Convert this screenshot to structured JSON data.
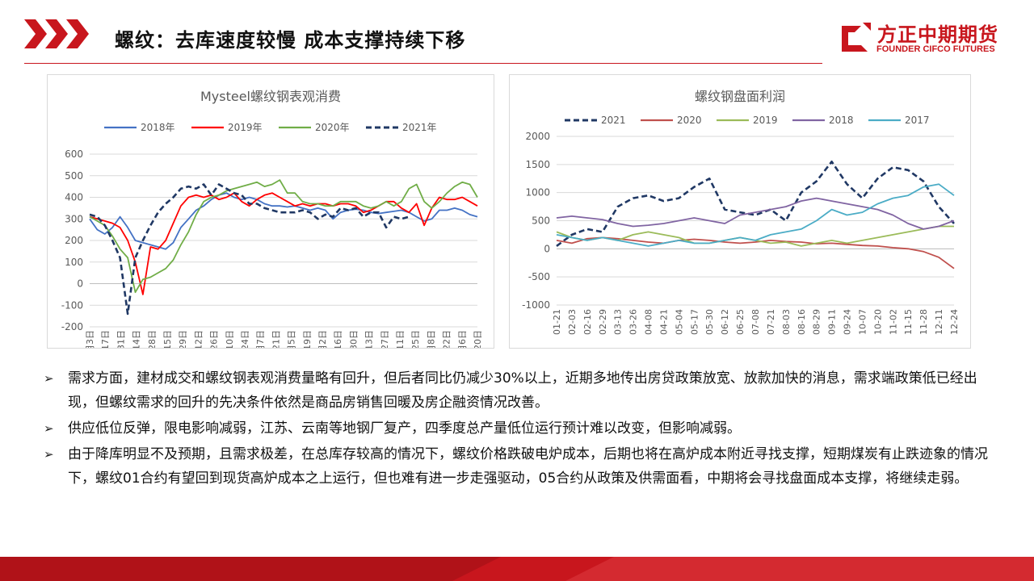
{
  "header": {
    "title": "螺纹：去库速度较慢 成本支撑持续下移",
    "logo_cn": "方正中期期货",
    "logo_en": "FOUNDER CIFCO FUTURES"
  },
  "colors": {
    "brand_red": "#c8161d"
  },
  "chart_data": [
    {
      "type": "line",
      "title": "Mysteel螺纹钢表观消费",
      "ylim": [
        -200,
        600
      ],
      "yticks": [
        -200,
        -100,
        0,
        100,
        200,
        300,
        400,
        500,
        600
      ],
      "xticks": [
        "1月3日",
        "1月17日",
        "1月31日",
        "2月14日",
        "2月28日",
        "3月15日",
        "3月29日",
        "4月12日",
        "4月26日",
        "5月10日",
        "5月24日",
        "6月7日",
        "6月21日",
        "7月5日",
        "7月19日",
        "8月2日",
        "8月16日",
        "8月30日",
        "9月13日",
        "9月27日",
        "10月11日",
        "10月25日",
        "11月8日",
        "11月22日",
        "12月6日",
        "12月20日"
      ],
      "x_count": 52,
      "legend_position": "top",
      "series": [
        {
          "name": "2018年",
          "color": "#4472c4",
          "style": "solid",
          "values": [
            300,
            250,
            230,
            260,
            310,
            260,
            200,
            190,
            180,
            170,
            160,
            190,
            260,
            300,
            340,
            360,
            390,
            410,
            420,
            400,
            390,
            400,
            390,
            370,
            360,
            360,
            355,
            360,
            350,
            340,
            350,
            340,
            300,
            330,
            340,
            345,
            340,
            330,
            325,
            330,
            335,
            340,
            330,
            310,
            290,
            300,
            340,
            340,
            350,
            340,
            320,
            310
          ]
        },
        {
          "name": "2019年",
          "color": "#ff0000",
          "style": "solid",
          "values": [
            310,
            300,
            290,
            280,
            260,
            200,
            100,
            -50,
            170,
            160,
            200,
            280,
            360,
            400,
            410,
            400,
            410,
            390,
            400,
            420,
            380,
            360,
            390,
            410,
            420,
            400,
            380,
            360,
            370,
            360,
            370,
            370,
            360,
            370,
            370,
            360,
            330,
            340,
            360,
            380,
            380,
            350,
            330,
            370,
            270,
            350,
            400,
            390,
            390,
            400,
            380,
            360
          ]
        },
        {
          "name": "2020年",
          "color": "#70ad47",
          "style": "solid",
          "values": [
            310,
            290,
            270,
            220,
            160,
            120,
            -40,
            20,
            30,
            50,
            70,
            110,
            180,
            240,
            320,
            380,
            400,
            410,
            430,
            440,
            450,
            460,
            470,
            450,
            460,
            480,
            420,
            420,
            380,
            370,
            370,
            360,
            360,
            380,
            380,
            380,
            360,
            350,
            360,
            380,
            360,
            380,
            440,
            460,
            380,
            350,
            380,
            420,
            450,
            470,
            460,
            400
          ]
        },
        {
          "name": "2021年",
          "color": "#203864",
          "style": "dash",
          "values": [
            320,
            310,
            270,
            200,
            120,
            -140,
            120,
            200,
            270,
            330,
            370,
            400,
            440,
            450,
            440,
            460,
            410,
            460,
            440,
            420,
            410,
            370,
            370,
            350,
            340,
            330,
            330,
            330,
            340,
            330,
            300,
            320,
            310,
            350,
            340,
            350,
            310,
            330,
            330,
            260,
            310,
            300,
            310
          ]
        }
      ]
    },
    {
      "type": "line",
      "title": "螺纹钢盘面利润",
      "ylim": [
        -1000,
        2000
      ],
      "yticks": [
        -1000,
        -500,
        0,
        500,
        1000,
        1500,
        2000
      ],
      "xticks": [
        "01-21",
        "02-03",
        "02-16",
        "02-29",
        "03-13",
        "03-26",
        "04-08",
        "04-21",
        "05-04",
        "05-17",
        "05-30",
        "06-12",
        "06-25",
        "07-08",
        "07-21",
        "08-03",
        "08-16",
        "08-29",
        "09-11",
        "09-24",
        "10-07",
        "10-20",
        "11-02",
        "11-15",
        "11-28",
        "12-11",
        "12-24"
      ],
      "legend_position": "top",
      "series": [
        {
          "name": "2021",
          "color": "#203864",
          "style": "dash",
          "values": [
            50,
            250,
            350,
            300,
            750,
            900,
            950,
            850,
            900,
            1100,
            1250,
            700,
            650,
            600,
            700,
            500,
            1000,
            1200,
            1550,
            1150,
            900,
            1250,
            1450,
            1400,
            1200,
            750,
            450
          ]
        },
        {
          "name": "2020",
          "color": "#c0504d",
          "style": "solid",
          "values": [
            150,
            100,
            180,
            200,
            180,
            150,
            120,
            100,
            150,
            170,
            150,
            120,
            100,
            120,
            150,
            130,
            120,
            90,
            100,
            80,
            60,
            50,
            20,
            0,
            -50,
            -150,
            -350
          ]
        },
        {
          "name": "2019",
          "color": "#9bbb59",
          "style": "solid",
          "values": [
            300,
            200,
            150,
            200,
            150,
            250,
            300,
            250,
            200,
            100,
            100,
            150,
            200,
            150,
            100,
            120,
            50,
            100,
            150,
            100,
            150,
            200,
            250,
            300,
            350,
            400,
            400
          ]
        },
        {
          "name": "2018",
          "color": "#8064a2",
          "style": "solid",
          "values": [
            550,
            580,
            550,
            520,
            450,
            400,
            420,
            450,
            500,
            550,
            500,
            450,
            600,
            650,
            700,
            750,
            850,
            900,
            850,
            800,
            750,
            700,
            600,
            450,
            350,
            400,
            500
          ]
        },
        {
          "name": "2017",
          "color": "#4bacc6",
          "style": "solid",
          "values": [
            250,
            200,
            150,
            200,
            150,
            100,
            50,
            100,
            150,
            100,
            100,
            150,
            200,
            150,
            250,
            300,
            350,
            500,
            700,
            600,
            650,
            800,
            900,
            950,
            1100,
            1150,
            950
          ]
        }
      ]
    }
  ],
  "bullets": [
    "需求方面，建材成交和螺纹钢表观消费量略有回升，但后者同比仍减少30%以上，近期多地传出房贷政策放宽、放款加快的消息，需求端政策低已经出现，但螺纹需求的回升的先决条件依然是商品房销售回暖及房企融资情况改善。",
    "供应低位反弹，限电影响减弱，江苏、云南等地钢厂复产，四季度总产量低位运行预计难以改变，但影响减弱。",
    "由于降库明显不及预期，且需求极差，在总库存较高的情况下，螺纹价格跌破电炉成本，后期也将在高炉成本附近寻找支撑，短期煤炭有止跌迹象的情况下，螺纹01合约有望回到现货高炉成本之上运行，但也难有进一步走强驱动，05合约从政策及供需面看，中期将会寻找盘面成本支撑，将继续走弱。"
  ]
}
